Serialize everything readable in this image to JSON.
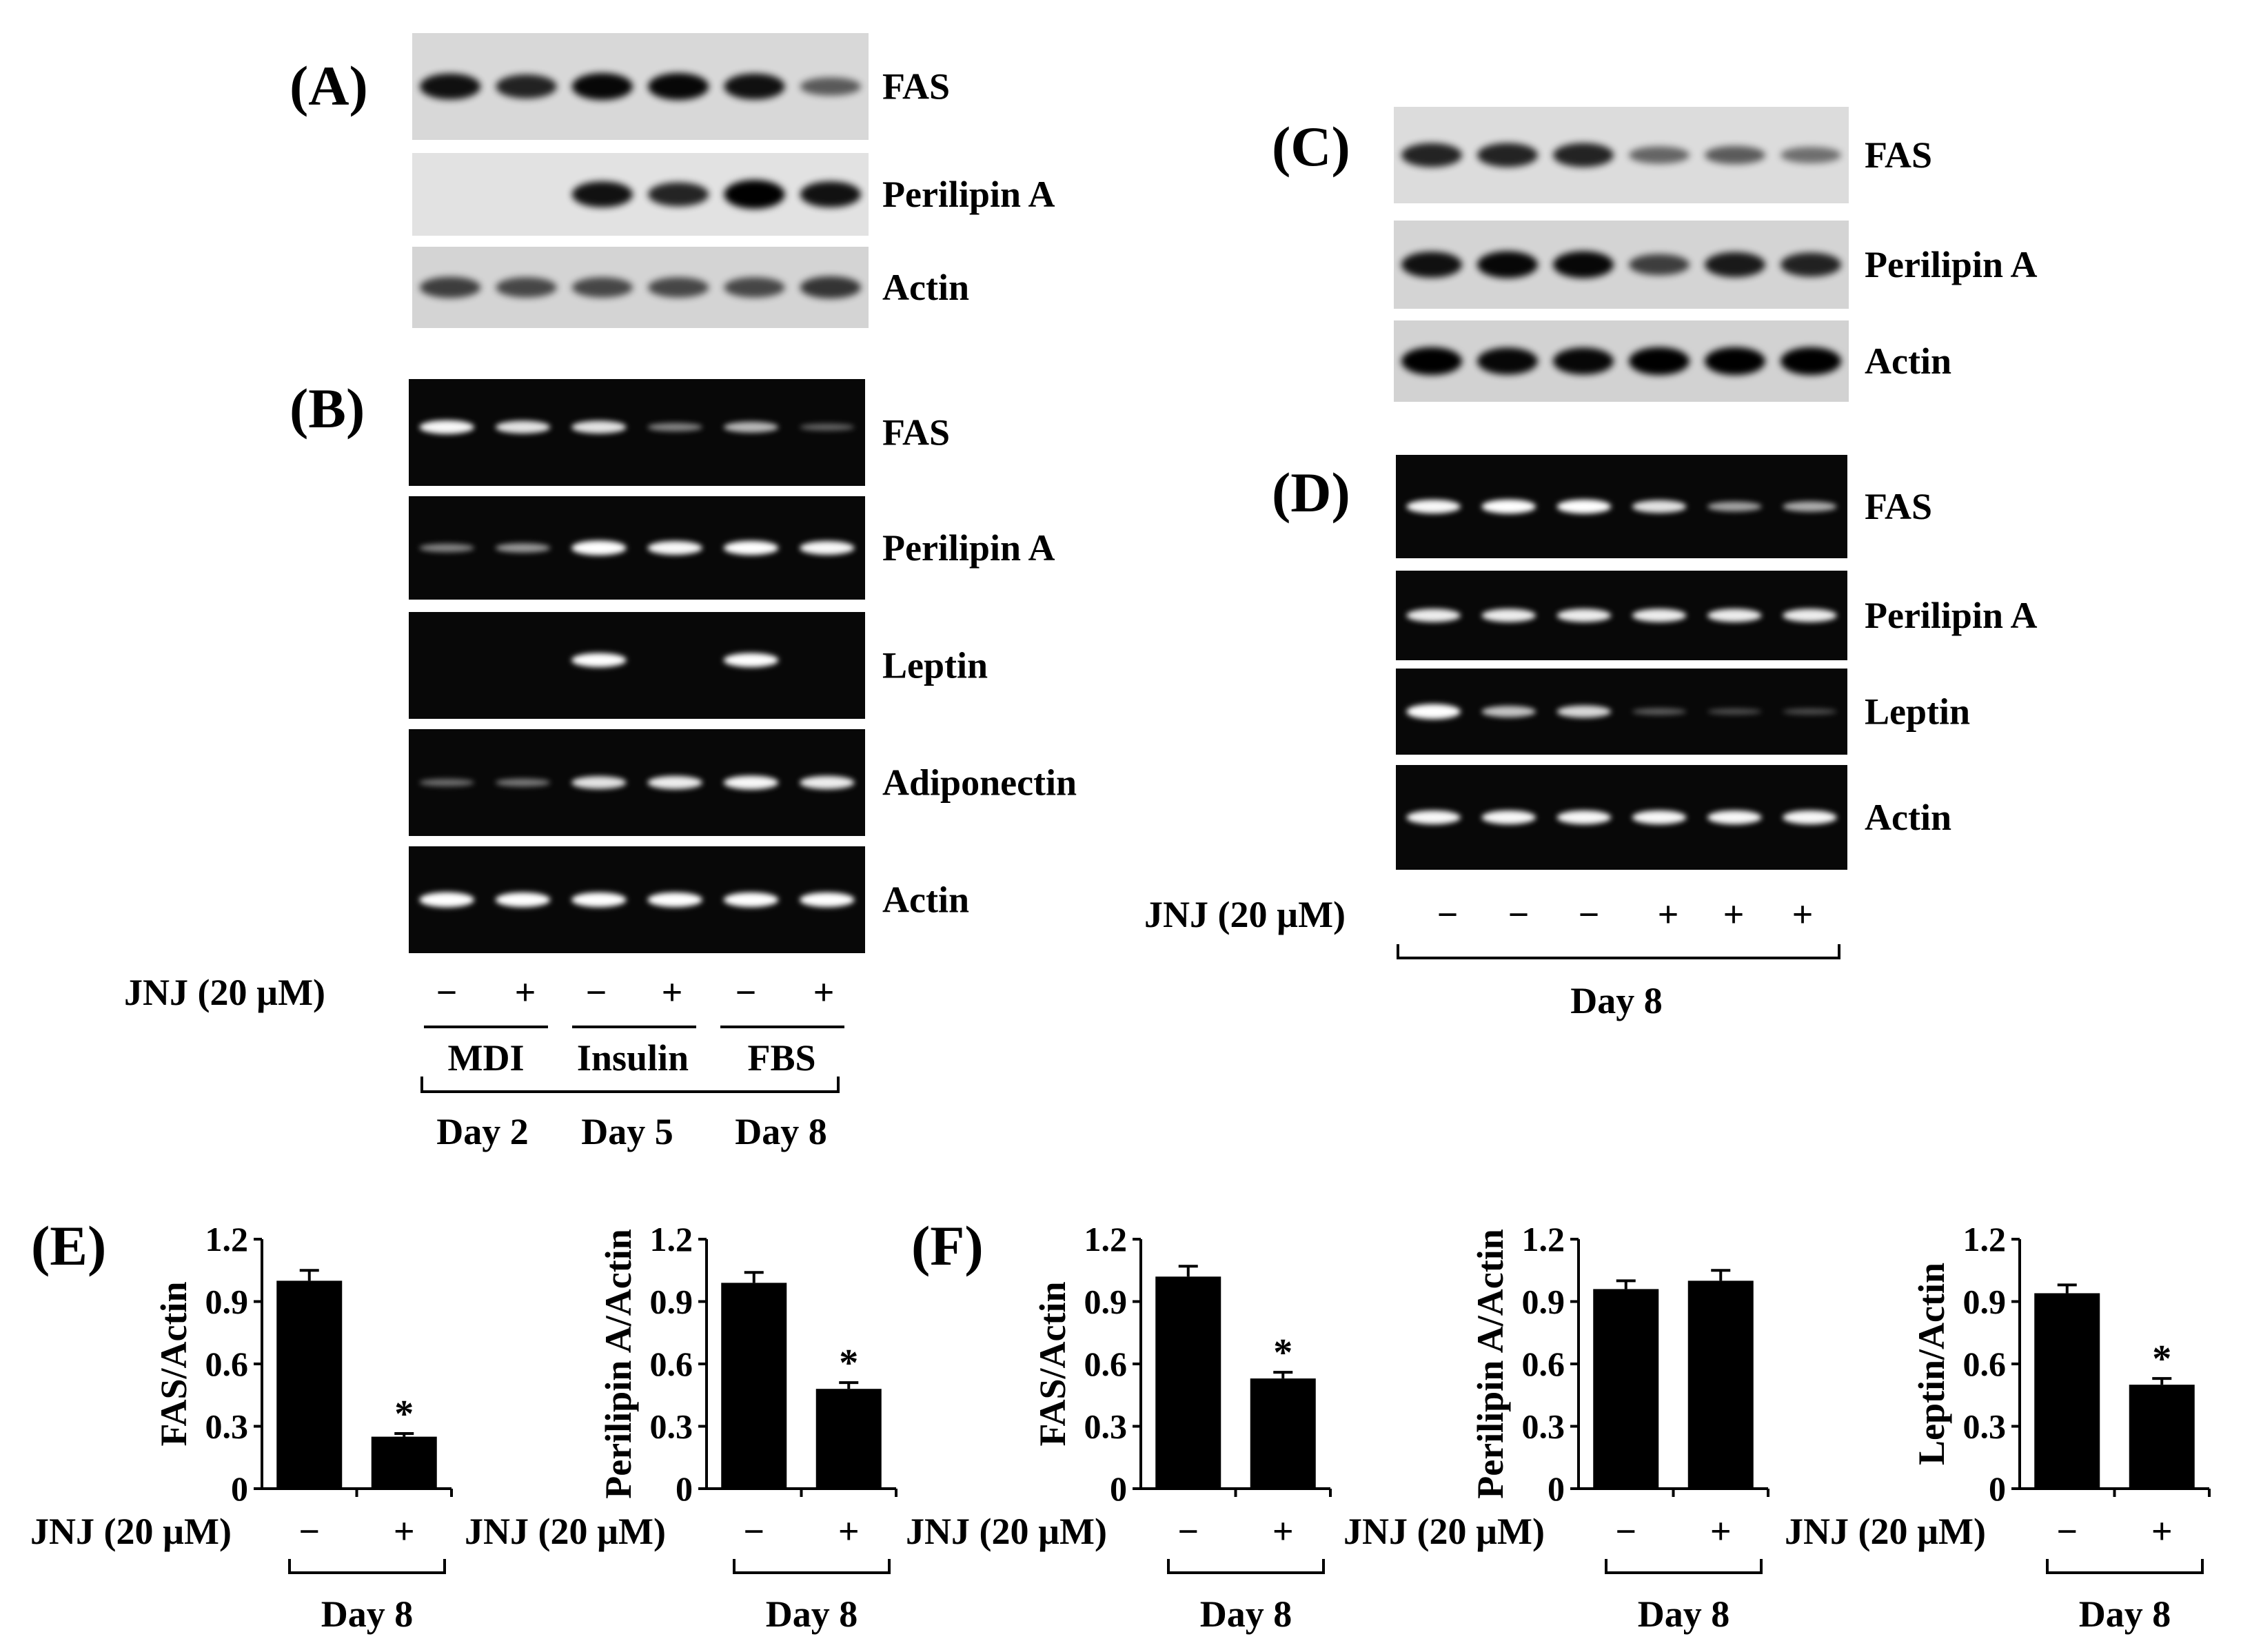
{
  "panels": {
    "A": {
      "label": "(A)",
      "rows": [
        {
          "name": "FAS",
          "bg": "#d8d8d8",
          "bands": [
            0.85,
            0.75,
            0.9,
            0.9,
            0.85,
            0.45
          ]
        },
        {
          "name": "Perilipin A",
          "bg": "#e2e2e2",
          "bands": [
            0.0,
            0.0,
            0.85,
            0.75,
            1.0,
            0.85
          ]
        },
        {
          "name": "Actin",
          "bg": "#d4d4d4",
          "bands": [
            0.6,
            0.55,
            0.55,
            0.55,
            0.55,
            0.65
          ]
        }
      ]
    },
    "B": {
      "label": "(B)",
      "rows": [
        {
          "name": "FAS",
          "bands": [
            0.85,
            0.75,
            0.75,
            0.3,
            0.55,
            0.15
          ]
        },
        {
          "name": "Perilipin A",
          "bands": [
            0.3,
            0.4,
            0.95,
            0.85,
            0.9,
            0.85
          ]
        },
        {
          "name": "Leptin",
          "bands": [
            0.0,
            0.0,
            0.9,
            0.0,
            0.9,
            0.0
          ]
        },
        {
          "name": "Adiponectin",
          "bands": [
            0.2,
            0.25,
            0.75,
            0.8,
            0.85,
            0.8
          ]
        },
        {
          "name": "Actin",
          "bands": [
            1.0,
            0.95,
            0.95,
            0.95,
            0.95,
            0.95
          ]
        }
      ],
      "treatment_label": "JNJ (20 µM)",
      "treatment_signs": [
        "−",
        "+",
        "−",
        "+",
        "−",
        "+"
      ],
      "groups": [
        "MDI",
        "Insulin",
        "FBS"
      ],
      "days": [
        "Day 2",
        "Day 5",
        "Day 8"
      ]
    },
    "C": {
      "label": "(C)",
      "rows": [
        {
          "name": "FAS",
          "bg": "#dcdcdc",
          "bands": [
            0.75,
            0.75,
            0.75,
            0.4,
            0.45,
            0.35
          ]
        },
        {
          "name": "Perilipin A",
          "bg": "#d4d4d4",
          "bands": [
            0.85,
            0.9,
            0.9,
            0.6,
            0.8,
            0.75
          ]
        },
        {
          "name": "Actin",
          "bg": "#d2d2d2",
          "bands": [
            0.95,
            0.9,
            0.9,
            0.95,
            0.95,
            0.95
          ]
        }
      ]
    },
    "D": {
      "label": "(D)",
      "rows": [
        {
          "name": "FAS",
          "bands": [
            0.85,
            0.9,
            0.9,
            0.75,
            0.45,
            0.5
          ]
        },
        {
          "name": "Perilipin A",
          "bands": [
            0.8,
            0.8,
            0.8,
            0.8,
            0.8,
            0.8
          ]
        },
        {
          "name": "Leptin",
          "bands": [
            1.0,
            0.6,
            0.7,
            0.12,
            0.05,
            0.05
          ]
        },
        {
          "name": "Actin",
          "bands": [
            0.85,
            0.85,
            0.85,
            0.85,
            0.85,
            0.85
          ]
        }
      ],
      "treatment_label": "JNJ (20 µM)",
      "treatment_signs": [
        "−",
        "−",
        "−",
        "+",
        "+",
        "+"
      ],
      "day": "Day 8"
    },
    "E": {
      "label": "(E)"
    },
    "F": {
      "label": "(F)"
    }
  },
  "chart_data": [
    {
      "type": "bar",
      "panel": "E",
      "ylabel": "FAS/Actin",
      "ylim": [
        0,
        1.2
      ],
      "yticks": [
        "0",
        "0.3",
        "0.6",
        "0.9",
        "1.2"
      ],
      "categories": [
        "−",
        "+"
      ],
      "values": [
        1.0,
        0.25
      ],
      "errors": [
        0.05,
        0.015
      ],
      "significance": [
        "",
        "*"
      ],
      "xlabel": "JNJ (20 µM)",
      "day": "Day 8",
      "bar_color": "#000000"
    },
    {
      "type": "bar",
      "panel": "E",
      "ylabel": "Perilipin A/Actin",
      "ylim": [
        0,
        1.2
      ],
      "yticks": [
        "0",
        "0.3",
        "0.6",
        "0.9",
        "1.2"
      ],
      "categories": [
        "−",
        "+"
      ],
      "values": [
        0.99,
        0.48
      ],
      "errors": [
        0.05,
        0.03
      ],
      "significance": [
        "",
        "*"
      ],
      "xlabel": "JNJ (20 µM)",
      "day": "Day 8",
      "bar_color": "#000000"
    },
    {
      "type": "bar",
      "panel": "F",
      "ylabel": "FAS/Actin",
      "ylim": [
        0,
        1.2
      ],
      "yticks": [
        "0",
        "0.3",
        "0.6",
        "0.9",
        "1.2"
      ],
      "categories": [
        "−",
        "+"
      ],
      "values": [
        1.02,
        0.53
      ],
      "errors": [
        0.05,
        0.03
      ],
      "significance": [
        "",
        "*"
      ],
      "xlabel": "JNJ (20 µM)",
      "day": "Day 8",
      "bar_color": "#000000"
    },
    {
      "type": "bar",
      "panel": "F",
      "ylabel": "Perilipin A/Actin",
      "ylim": [
        0,
        1.2
      ],
      "yticks": [
        "0",
        "0.3",
        "0.6",
        "0.9",
        "1.2"
      ],
      "categories": [
        "−",
        "+"
      ],
      "values": [
        0.96,
        1.0
      ],
      "errors": [
        0.04,
        0.05
      ],
      "significance": [
        "",
        ""
      ],
      "xlabel": "JNJ (20 µM)",
      "day": "Day 8",
      "bar_color": "#000000"
    },
    {
      "type": "bar",
      "panel": "F",
      "ylabel": "Leptin/Actin",
      "ylim": [
        0,
        1.2
      ],
      "yticks": [
        "0",
        "0.3",
        "0.6",
        "0.9",
        "1.2"
      ],
      "categories": [
        "−",
        "+"
      ],
      "values": [
        0.94,
        0.5
      ],
      "errors": [
        0.04,
        0.03
      ],
      "significance": [
        "",
        "*"
      ],
      "xlabel": "JNJ (20 µM)",
      "day": "Day 8",
      "bar_color": "#000000"
    }
  ]
}
